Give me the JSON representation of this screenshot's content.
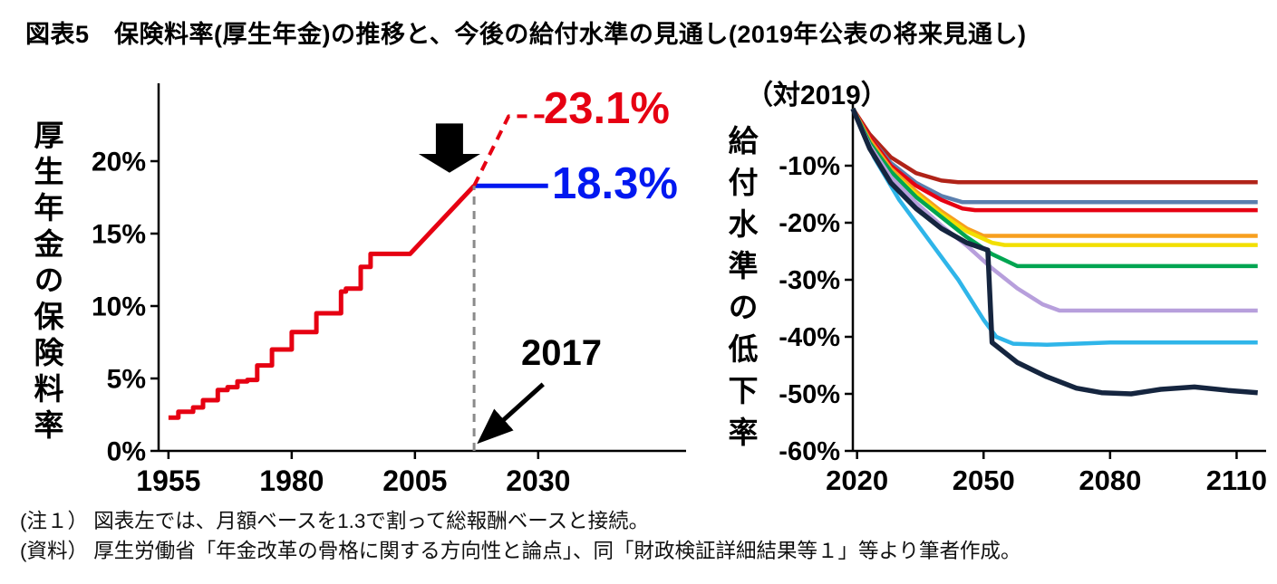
{
  "title": "図表5　保険料率(厚生年金)の推移と、今後の給付水準の見通し(2019年公表の将来見通し)",
  "notes": [
    "(注１） 図表左では、月額ベースを1.3で割って総報酬ベースと接続。",
    "(資料） 厚生労働省「年金改革の骨格に関する方向性と論点」、同「財政検証詳細結果等１」等より筆者作成。"
  ],
  "chart_data": [
    {
      "id": "premium-rate-history",
      "type": "line",
      "ylabel": "厚生年金の保険料率",
      "xlim": [
        1953,
        2060
      ],
      "ylim": [
        0,
        25
      ],
      "grid": false,
      "xticks": [
        {
          "v": 1955,
          "label": "1955"
        },
        {
          "v": 1980,
          "label": "1980"
        },
        {
          "v": 2005,
          "label": "2005"
        },
        {
          "v": 2030,
          "label": "2030"
        }
      ],
      "yticks": [
        {
          "v": 0,
          "label": "0%"
        },
        {
          "v": 5,
          "label": "5%"
        },
        {
          "v": 10,
          "label": "10%"
        },
        {
          "v": 15,
          "label": "15%"
        },
        {
          "v": 20,
          "label": "20%"
        }
      ],
      "series": [
        {
          "name": "historical-premium-rate",
          "color": "#e60012",
          "width": 5,
          "dash": null,
          "x": [
            1955,
            1957,
            1957,
            1960,
            1960,
            1962,
            1962,
            1965,
            1965,
            1967,
            1967,
            1969,
            1969,
            1971,
            1971,
            1973,
            1973,
            1976,
            1976,
            1980,
            1980,
            1985,
            1985,
            1990,
            1990,
            1991,
            1991,
            1994,
            1994,
            1996,
            1996,
            2004,
            2017
          ],
          "y": [
            2.3,
            2.3,
            2.7,
            2.7,
            3.0,
            3.0,
            3.5,
            3.5,
            4.2,
            4.2,
            4.4,
            4.4,
            4.8,
            4.8,
            4.9,
            4.9,
            5.9,
            5.9,
            7.0,
            7.0,
            8.2,
            8.2,
            9.5,
            9.5,
            11.0,
            11.0,
            11.2,
            11.2,
            12.7,
            12.7,
            13.6,
            13.6,
            18.3
          ]
        },
        {
          "name": "fixed-premium-rate",
          "color": "#0018f0",
          "width": 5,
          "dash": null,
          "x": [
            2017,
            2032
          ],
          "y": [
            18.3,
            18.3
          ]
        },
        {
          "name": "projected-premium-rate",
          "color": "#e60012",
          "width": 4,
          "dash": "11,8",
          "x": [
            2017,
            2024,
            2032
          ],
          "y": [
            18.3,
            23.1,
            23.1
          ]
        },
        {
          "name": "year-2017-guide",
          "color": "#8a8a8a",
          "width": 3,
          "dash": "9,7",
          "x": [
            2017,
            2017
          ],
          "y": [
            0,
            18.3
          ]
        }
      ],
      "annotations": {
        "projected_label": "23.1%",
        "fixed_label": "18.3%",
        "year_label": "2017",
        "projected_value": 23.1,
        "fixed_value": 18.3,
        "year": 2017
      }
    },
    {
      "id": "benefit-level-decline",
      "type": "line",
      "subtitle": "（対2019）",
      "ylabel": "給付水準の低下率",
      "xlim": [
        2019,
        2117
      ],
      "ylim": [
        -60,
        0
      ],
      "grid": false,
      "xticks": [
        {
          "v": 2020,
          "label": "2020"
        },
        {
          "v": 2050,
          "label": "2050"
        },
        {
          "v": 2080,
          "label": "2080"
        },
        {
          "v": 2110,
          "label": "2110"
        }
      ],
      "yticks": [
        {
          "v": -10,
          "label": "-10%"
        },
        {
          "v": -20,
          "label": "-20%"
        },
        {
          "v": -30,
          "label": "-30%"
        },
        {
          "v": -40,
          "label": "-40%"
        },
        {
          "v": -50,
          "label": "-50%"
        },
        {
          "v": -60,
          "label": "-60%"
        }
      ],
      "series": [
        {
          "name": "case-dark-red",
          "color": "#b02318",
          "width": 4.5,
          "dash": null,
          "x": [
            2019,
            2023,
            2028,
            2034,
            2040,
            2044,
            2115
          ],
          "y": [
            0,
            -4.5,
            -8.5,
            -11.3,
            -12.6,
            -12.9,
            -12.9
          ]
        },
        {
          "name": "case-steel-blue",
          "color": "#5b7fae",
          "width": 4.5,
          "dash": null,
          "x": [
            2019,
            2023,
            2028,
            2034,
            2040,
            2045,
            2115
          ],
          "y": [
            0,
            -5,
            -9.5,
            -13,
            -15.3,
            -16.4,
            -16.4
          ]
        },
        {
          "name": "case-red",
          "color": "#e60012",
          "width": 4.5,
          "dash": null,
          "x": [
            2019,
            2023,
            2028,
            2034,
            2040,
            2045,
            2048,
            2115
          ],
          "y": [
            0,
            -5,
            -10,
            -13.5,
            -16,
            -17.5,
            -17.8,
            -17.8
          ]
        },
        {
          "name": "case-orange",
          "color": "#f79f1e",
          "width": 4.5,
          "dash": null,
          "x": [
            2019,
            2023,
            2028,
            2034,
            2040,
            2046,
            2050,
            2115
          ],
          "y": [
            0,
            -5.5,
            -10.5,
            -14.5,
            -18,
            -21,
            -22.3,
            -22.3
          ]
        },
        {
          "name": "case-yellow",
          "color": "#f2df00",
          "width": 4.5,
          "dash": null,
          "x": [
            2019,
            2023,
            2028,
            2034,
            2040,
            2046,
            2052,
            2055,
            2115
          ],
          "y": [
            0,
            -6,
            -11,
            -15,
            -18.5,
            -21.5,
            -23.5,
            -23.9,
            -23.9
          ]
        },
        {
          "name": "case-green",
          "color": "#00a551",
          "width": 4.5,
          "dash": null,
          "x": [
            2019,
            2023,
            2028,
            2034,
            2040,
            2046,
            2052,
            2058,
            2115
          ],
          "y": [
            0,
            -6,
            -11,
            -15.5,
            -19,
            -22.5,
            -25.5,
            -27.6,
            -27.6
          ]
        },
        {
          "name": "case-purple",
          "color": "#b79fdc",
          "width": 4.5,
          "dash": null,
          "x": [
            2019,
            2023,
            2028,
            2034,
            2040,
            2046,
            2052,
            2058,
            2064,
            2068,
            2115
          ],
          "y": [
            0,
            -6.5,
            -12,
            -16.5,
            -20.5,
            -24,
            -28,
            -31.5,
            -34.3,
            -35.4,
            -35.4
          ]
        },
        {
          "name": "case-cyan",
          "color": "#2fb5e9",
          "width": 4.5,
          "dash": null,
          "x": [
            2019,
            2024,
            2030,
            2037,
            2044,
            2050,
            2053,
            2057,
            2065,
            2080,
            2115
          ],
          "y": [
            0,
            -8.5,
            -16,
            -23,
            -30,
            -37,
            -40,
            -41.2,
            -41.4,
            -41,
            -41
          ]
        },
        {
          "name": "case-navy",
          "color": "#15253f",
          "width": 5.5,
          "dash": null,
          "x": [
            2019,
            2023,
            2028,
            2034,
            2040,
            2046,
            2051,
            2052,
            2058,
            2065,
            2072,
            2078,
            2085,
            2092,
            2100,
            2108,
            2115
          ],
          "y": [
            0,
            -7,
            -13,
            -17.5,
            -21,
            -23.5,
            -24.8,
            -41,
            -44.5,
            -47,
            -49,
            -49.8,
            -50,
            -49.2,
            -48.8,
            -49.4,
            -49.8
          ]
        }
      ]
    }
  ]
}
